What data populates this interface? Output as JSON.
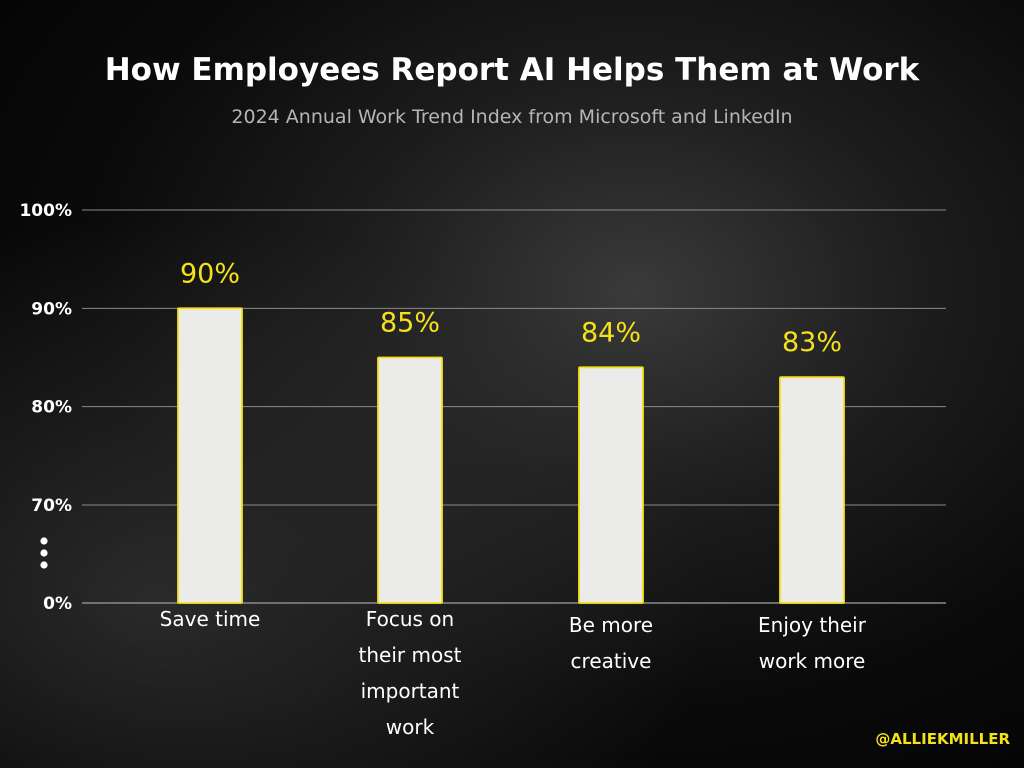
{
  "chart_data": {
    "type": "bar",
    "title": "How Employees Report AI Helps Them at Work",
    "subtitle": "2024 Annual Work Trend Index from Microsoft and LinkedIn",
    "categories": [
      [
        "Save time"
      ],
      [
        "Focus on",
        "their most",
        "important",
        "work"
      ],
      [
        "Be more",
        "creative"
      ],
      [
        "Enjoy their",
        "work more"
      ]
    ],
    "values": [
      90,
      85,
      84,
      83
    ],
    "data_labels": [
      "90%",
      "85%",
      "84%",
      "83%"
    ],
    "y_axis": {
      "broken": true,
      "ticks": [
        {
          "value": 0,
          "label": "0%"
        },
        {
          "value": 70,
          "label": "70%"
        },
        {
          "value": 80,
          "label": "80%"
        },
        {
          "value": 90,
          "label": "90%"
        },
        {
          "value": 100,
          "label": "100%"
        }
      ],
      "break_marker": "⋮"
    },
    "grid": true,
    "colors": {
      "bar_fill": "#ebebe9",
      "bar_stroke": "#f3e11a",
      "data_label": "#f3e11a",
      "gridline": "#8a8a8a",
      "text": "#ffffff"
    }
  },
  "watermark": "@ALLIEKMILLER"
}
